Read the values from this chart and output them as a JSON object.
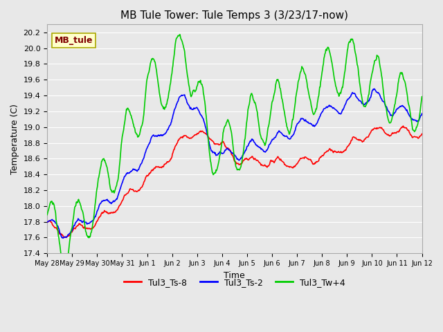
{
  "title": "MB Tule Tower: Tule Temps 3 (3/23/17-now)",
  "xlabel": "Time",
  "ylabel": "Temperature (C)",
  "bg_color": "#e8e8e8",
  "plot_bg_color": "#e8e8e8",
  "ylim": [
    17.4,
    20.3
  ],
  "yticks": [
    17.4,
    17.6,
    17.8,
    18.0,
    18.2,
    18.4,
    18.6,
    18.8,
    19.0,
    19.2,
    19.4,
    19.6,
    19.8,
    20.0,
    20.2
  ],
  "xtick_labels": [
    "May 28",
    "May 29",
    "May 30",
    "May 31",
    "Jun 1",
    "Jun 2",
    "Jun 3",
    "Jun 4",
    "Jun 5",
    "Jun 6",
    "Jun 7",
    "Jun 8",
    "Jun 9",
    "Jun 10",
    "Jun 11",
    "Jun 12"
  ],
  "legend_label": "MB_tule",
  "series_labels": [
    "Tul3_Ts-8",
    "Tul3_Ts-2",
    "Tul3_Tw+4"
  ],
  "series_colors": [
    "#ff0000",
    "#0000ff",
    "#00cc00"
  ],
  "line_width": 1.2
}
